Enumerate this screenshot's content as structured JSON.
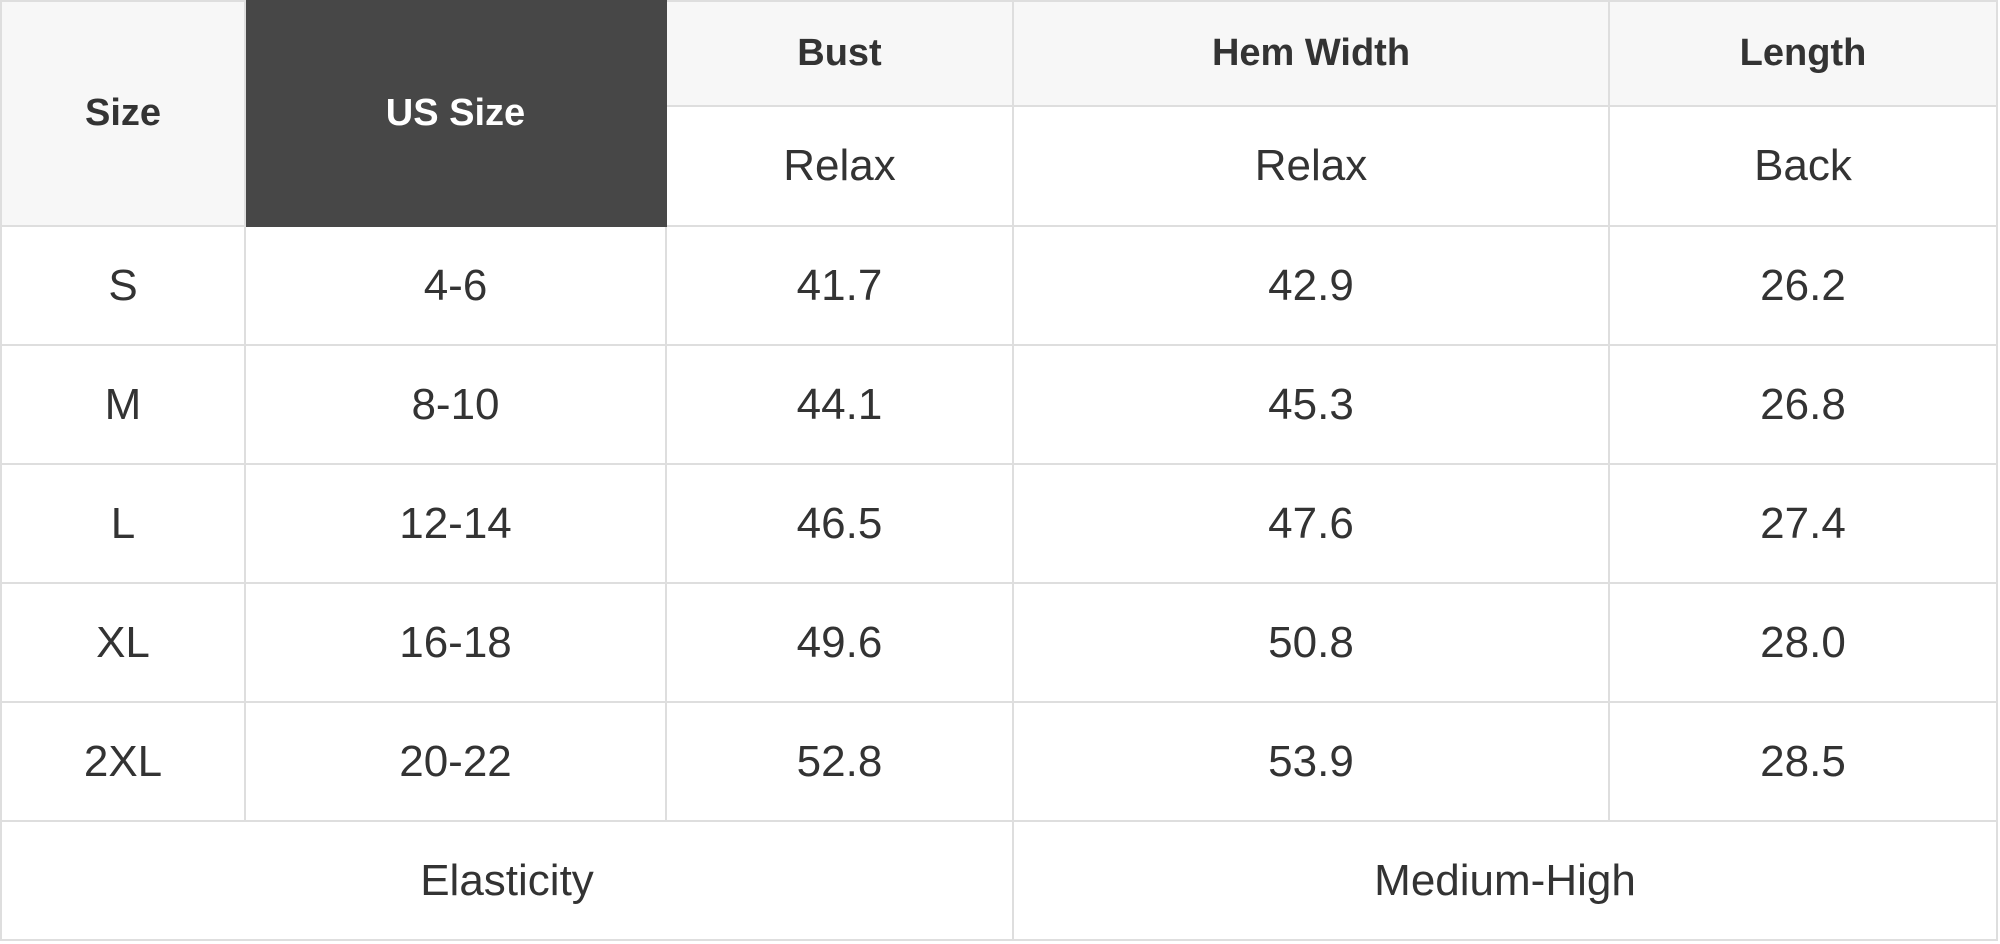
{
  "headers": {
    "size": "Size",
    "us_size": "US Size",
    "bust": "Bust",
    "hem_width": "Hem Width",
    "length": "Length",
    "bust_sub": "Relax",
    "hem_sub": "Relax",
    "length_sub": "Back"
  },
  "rows": [
    [
      "S",
      "4-6",
      "41.7",
      "42.9",
      "26.2"
    ],
    [
      "M",
      "8-10",
      "44.1",
      "45.3",
      "26.8"
    ],
    [
      "L",
      "12-14",
      "46.5",
      "47.6",
      "27.4"
    ],
    [
      "XL",
      "16-18",
      "49.6",
      "50.8",
      "28.0"
    ],
    [
      "2XL",
      "20-22",
      "52.8",
      "53.9",
      "28.5"
    ]
  ],
  "footer": {
    "label": "Elasticity",
    "value": "Medium-High"
  },
  "colors": {
    "header_bg": "#f7f7f7",
    "highlight_bg": "#474747",
    "border": "#dedede",
    "text": "#333333"
  }
}
